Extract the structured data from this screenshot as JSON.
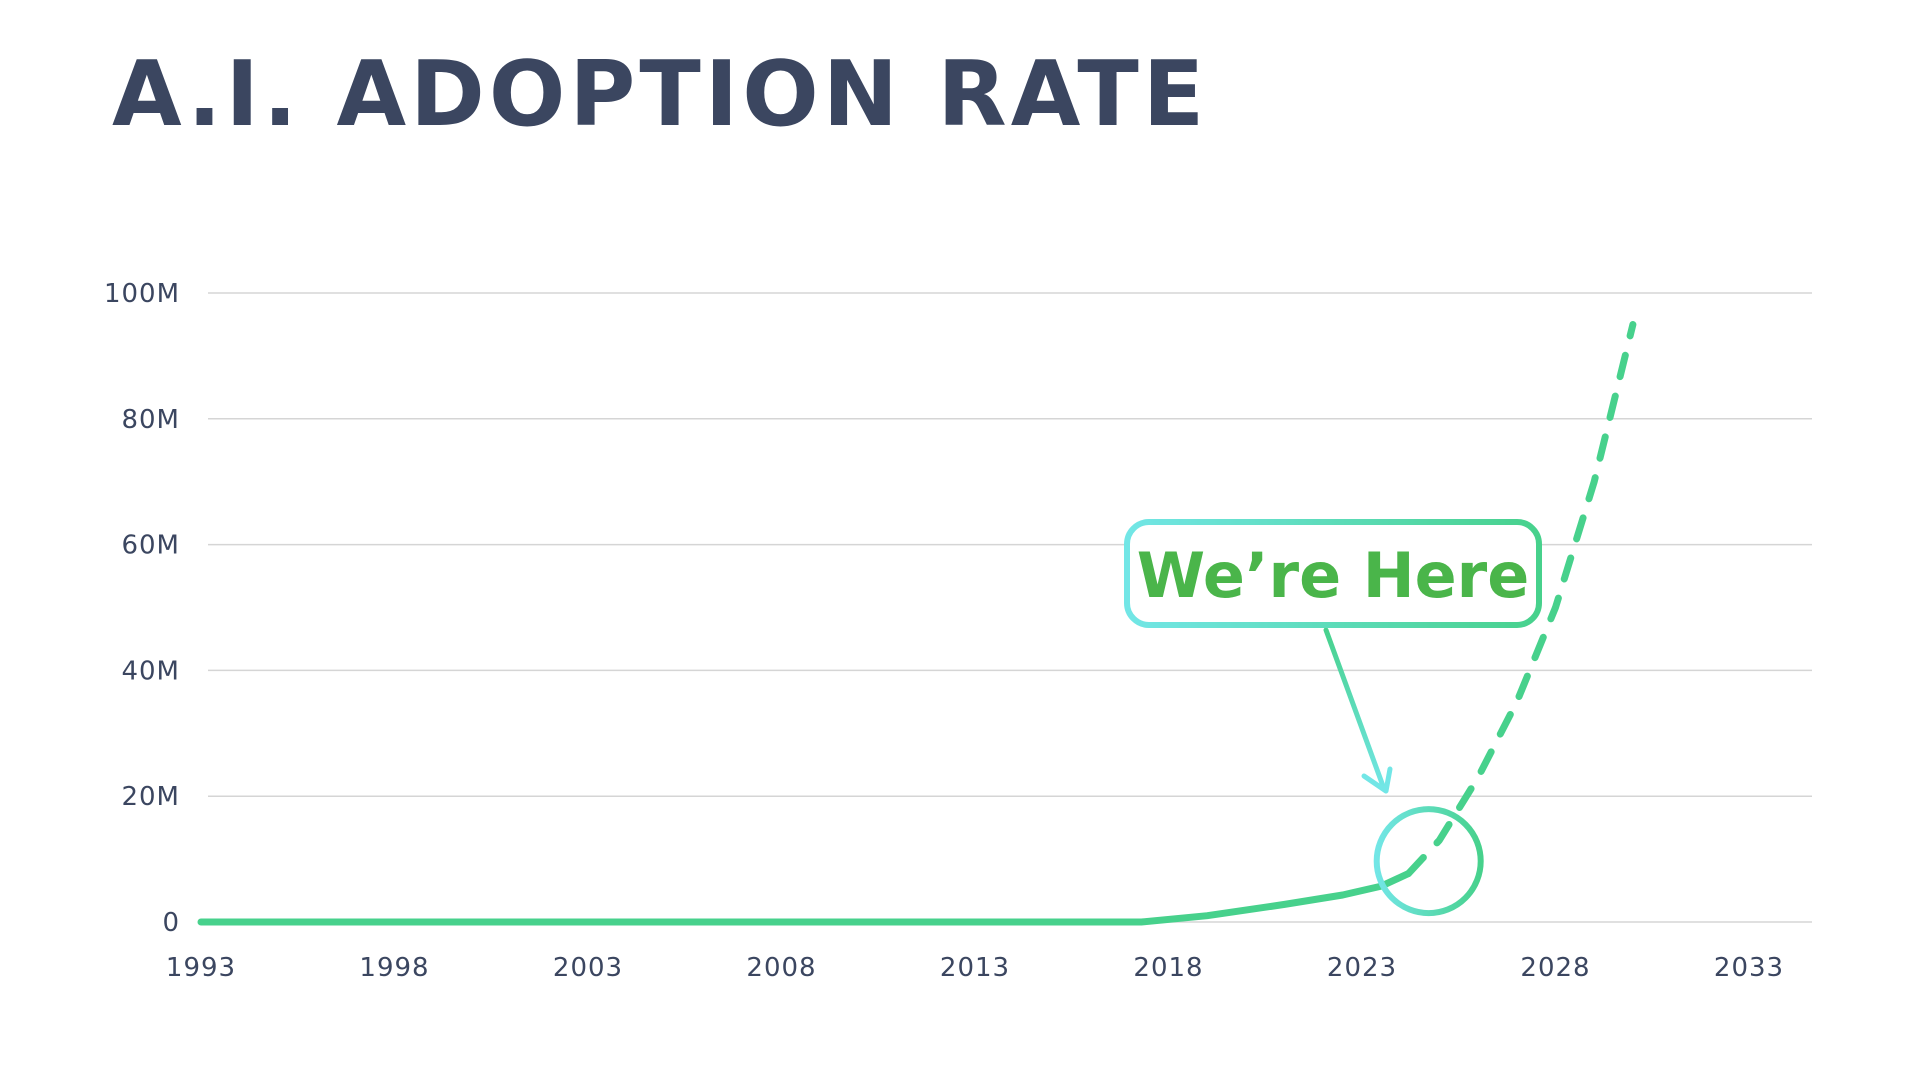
{
  "title": "A.I. ADOPTION RATE",
  "chart_data": {
    "type": "line",
    "title": "A.I. ADOPTION RATE",
    "x_ticks": [
      "1993",
      "1998",
      "2003",
      "2008",
      "2013",
      "2018",
      "2023",
      "2028",
      "2033"
    ],
    "y_ticks": [
      "0",
      "20M",
      "40M",
      "60M",
      "80M",
      "100M"
    ],
    "xlim": [
      1993,
      2035
    ],
    "ylim": [
      0,
      100000000
    ],
    "grid": true,
    "series": [
      {
        "style": "solid",
        "color": "#47d18c",
        "x": [
          1993,
          2017.3,
          2019,
          2021,
          2022.5,
          2023.5,
          2024.2
        ],
        "y": [
          0,
          0,
          1000000,
          2800000,
          4300000,
          5700000,
          7700000
        ]
      },
      {
        "style": "dashed",
        "color": "#47d18c",
        "x": [
          2024.2,
          2025,
          2026,
          2027,
          2028,
          2029,
          2030
        ],
        "y": [
          7700000,
          13000000,
          23000000,
          35000000,
          50000000,
          70000000,
          95000000
        ]
      }
    ],
    "annotations": [
      {
        "text": "We’re Here",
        "target_x": 2024,
        "target_y": 10000000
      }
    ],
    "colors": {
      "line": "#47d18c",
      "callout_gradient_start": "#72e6e6",
      "callout_gradient_end": "#47d18c",
      "callout_text": "#4ab54a",
      "axis_text": "#3b4660",
      "grid": "#d5d5d5"
    }
  }
}
